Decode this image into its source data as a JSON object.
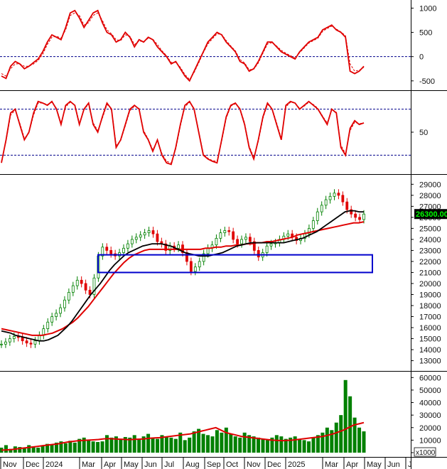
{
  "chart_data": [
    {
      "type": "line",
      "panel": "oscillator-1",
      "y_ticks": [
        1000,
        500,
        0,
        -500
      ],
      "ylim": [
        -620,
        1050
      ],
      "reference_lines": [
        0
      ],
      "series": [
        {
          "color": "#e00000",
          "style": "solid",
          "values": [
            -400,
            -450,
            -200,
            -100,
            -150,
            -250,
            -200,
            -120,
            -50,
            100,
            300,
            450,
            400,
            350,
            600,
            900,
            950,
            800,
            600,
            750,
            900,
            950,
            700,
            500,
            450,
            300,
            350,
            500,
            400,
            200,
            350,
            300,
            400,
            350,
            200,
            100,
            0,
            -150,
            -100,
            -250,
            -400,
            -500,
            -300,
            -100,
            100,
            300,
            400,
            500,
            450,
            300,
            200,
            100,
            -100,
            -150,
            -300,
            -250,
            -100,
            100,
            300,
            300,
            200,
            100,
            50,
            0,
            -50,
            100,
            200,
            300,
            350,
            400,
            550,
            600,
            650,
            550,
            500,
            400,
            -300,
            -350,
            -300,
            -200
          ]
        },
        {
          "color": "#e00000",
          "style": "dashed",
          "values": [
            -350,
            -400,
            -250,
            -150,
            -150,
            -200,
            -200,
            -150,
            -80,
            50,
            250,
            400,
            420,
            380,
            550,
            850,
            900,
            850,
            650,
            700,
            850,
            900,
            750,
            550,
            470,
            350,
            330,
            450,
            420,
            250,
            320,
            310,
            380,
            360,
            250,
            120,
            20,
            -120,
            -120,
            -220,
            -370,
            -470,
            -330,
            -130,
            80,
            260,
            370,
            470,
            460,
            330,
            220,
            120,
            -60,
            -130,
            -270,
            -260,
            -130,
            70,
            260,
            290,
            220,
            130,
            70,
            20,
            -30,
            80,
            180,
            280,
            330,
            380,
            520,
            580,
            630,
            570,
            510,
            430,
            -150,
            -300,
            -280,
            -220
          ]
        }
      ]
    },
    {
      "type": "line",
      "panel": "oscillator-2",
      "y_ticks": [
        50
      ],
      "ylim": [
        0,
        100
      ],
      "reference_lines": [
        80,
        20
      ],
      "series": [
        {
          "color": "#e00000",
          "style": "solid",
          "values": [
            10,
            40,
            75,
            80,
            60,
            40,
            50,
            75,
            90,
            88,
            85,
            90,
            80,
            60,
            85,
            90,
            85,
            60,
            80,
            88,
            60,
            50,
            70,
            88,
            80,
            30,
            40,
            60,
            80,
            85,
            80,
            50,
            40,
            25,
            40,
            20,
            10,
            8,
            30,
            60,
            85,
            90,
            80,
            50,
            20,
            15,
            12,
            10,
            40,
            70,
            85,
            88,
            80,
            60,
            30,
            15,
            40,
            70,
            88,
            80,
            60,
            40,
            85,
            90,
            88,
            80,
            85,
            90,
            85,
            80,
            70,
            60,
            80,
            75,
            30,
            20,
            55,
            65,
            60,
            62
          ]
        },
        {
          "color": "#e00000",
          "style": "dashed",
          "values": [
            12,
            38,
            72,
            79,
            62,
            42,
            49,
            72,
            88,
            88,
            86,
            89,
            81,
            62,
            83,
            89,
            86,
            62,
            79,
            87,
            62,
            52,
            68,
            86,
            81,
            33,
            39,
            58,
            78,
            84,
            81,
            52,
            41,
            27,
            39,
            22,
            12,
            10,
            28,
            58,
            83,
            89,
            81,
            52,
            22,
            16,
            13,
            12,
            38,
            68,
            84,
            87,
            81,
            62,
            32,
            17,
            38,
            68,
            86,
            81,
            62,
            42,
            83,
            89,
            88,
            81,
            84,
            89,
            86,
            81,
            71,
            62,
            79,
            76,
            33,
            22,
            52,
            63,
            61,
            62
          ]
        }
      ]
    },
    {
      "type": "candlestick",
      "panel": "price",
      "y_ticks": [
        29000,
        28000,
        27000,
        26000,
        25000,
        24000,
        23000,
        22000,
        21000,
        20000,
        19000,
        18000,
        17000,
        16000,
        15000,
        14000,
        13000
      ],
      "ylim": [
        12200,
        29600
      ],
      "last_price_label": "26300.00",
      "closes": [
        14500,
        14700,
        15000,
        15200,
        15100,
        14800,
        14600,
        14500,
        14800,
        15300,
        15900,
        16500,
        17000,
        17300,
        17800,
        18500,
        19200,
        19800,
        20300,
        20000,
        19400,
        19000,
        20500,
        22500,
        23300,
        23000,
        22700,
        22500,
        22800,
        23200,
        23600,
        24000,
        24200,
        24400,
        24600,
        24800,
        24500,
        23800,
        23600,
        23000,
        23400,
        23200,
        23500,
        22800,
        22000,
        21100,
        21500,
        22000,
        22700,
        23200,
        23500,
        24100,
        24600,
        24800,
        24700,
        24000,
        23600,
        24000,
        24200,
        23800,
        23000,
        22400,
        22800,
        23400,
        23600,
        23700,
        24000,
        24300,
        24500,
        24200,
        23900,
        24100,
        24500,
        25000,
        25700,
        26500,
        27100,
        27600,
        27900,
        28200,
        28000,
        27400,
        26700,
        26300,
        26000,
        25800,
        26300
      ],
      "ma_black": [
        15700,
        15600,
        15500,
        15300,
        15200,
        15100,
        15000,
        14900,
        14800,
        14800,
        14900,
        15100,
        15300,
        15700,
        16100,
        16600,
        17200,
        17800,
        18400,
        19000,
        19500,
        20000,
        20600,
        21200,
        21700,
        22100,
        22500,
        22800,
        23000,
        23200,
        23400,
        23500,
        23600,
        23600,
        23600,
        23500,
        23400,
        23200,
        23000,
        22800,
        22700,
        22600,
        22500,
        22500,
        22500,
        22600,
        22700,
        22800,
        23000,
        23200,
        23400,
        23500,
        23600,
        23700,
        23700,
        23700,
        23700,
        23700,
        23700,
        23700,
        23700,
        23800,
        23900,
        24000,
        24100,
        24300,
        24500,
        24700,
        25000,
        25300,
        25600,
        25900,
        26200,
        26500,
        26600,
        26600,
        26500,
        26500
      ],
      "ma_red": [
        15900,
        15800,
        15700,
        15600,
        15500,
        15400,
        15300,
        15300,
        15300,
        15400,
        15500,
        15700,
        15900,
        16200,
        16500,
        16900,
        17400,
        17900,
        18500,
        19100,
        19700,
        20300,
        20900,
        21400,
        21900,
        22300,
        22600,
        22800,
        23000,
        23100,
        23100,
        23100,
        23100,
        23100,
        23100,
        23100,
        23100,
        23100,
        23100,
        23100,
        23200,
        23200,
        23300,
        23300,
        23400,
        23400,
        23500,
        23500,
        23600,
        23600,
        23700,
        23700,
        23800,
        23800,
        23900,
        24000,
        24100,
        24200,
        24400,
        24500,
        24600,
        24700,
        24800,
        24900,
        25000,
        25100,
        25200,
        25300,
        25400,
        25500,
        25500,
        25600
      ],
      "annotation_box": {
        "y_range": [
          21000,
          22600
        ],
        "color": "#0000cc"
      }
    },
    {
      "type": "bar",
      "panel": "volume",
      "y_ticks": [
        60000,
        50000,
        40000,
        30000,
        20000,
        10000,
        0
      ],
      "ylim": [
        0,
        63000
      ],
      "unit_label": "x1000",
      "ma_color": "#e00000",
      "bar_color": "#008000",
      "values": [
        4000,
        6000,
        3000,
        5000,
        4500,
        3500,
        6000,
        5000,
        4000,
        5500,
        7000,
        6500,
        8000,
        9000,
        7500,
        9500,
        8000,
        11000,
        12000,
        10000,
        9000,
        8500,
        9000,
        14000,
        12000,
        13000,
        11000,
        12500,
        12000,
        14000,
        11000,
        13000,
        15000,
        12000,
        11000,
        14000,
        13000,
        12000,
        11000,
        16000,
        10000,
        12000,
        17000,
        19000,
        15000,
        14000,
        13000,
        18000,
        16000,
        20000,
        15000,
        13000,
        12000,
        16000,
        14000,
        13000,
        12000,
        11000,
        10000,
        12000,
        14000,
        13000,
        11000,
        12000,
        13000,
        11000,
        10000,
        9000,
        12000,
        14000,
        16000,
        20000,
        18000,
        24000,
        30000,
        58000,
        45000,
        28000,
        20000,
        17000
      ],
      "ma_values": [
        2000,
        2200,
        2500,
        3000,
        3500,
        4000,
        4500,
        5000,
        5500,
        6000,
        6500,
        7000,
        7800,
        8500,
        9000,
        9500,
        9800,
        10000,
        10200,
        10500,
        11000,
        11200,
        11000,
        10800,
        10600,
        10400,
        10600,
        10800,
        11000,
        11500,
        11800,
        12000,
        12500,
        13000,
        13500,
        14000,
        14500,
        15000,
        16000,
        17000,
        18000,
        19000,
        20000,
        18000,
        16000,
        15000,
        14000,
        13000,
        12500,
        12000,
        11500,
        11000,
        10500,
        10000,
        9800,
        9600,
        9800,
        10000,
        10500,
        11000,
        11500,
        12000,
        12500,
        13000,
        14000,
        15000,
        16500,
        18000,
        20000,
        22000,
        23000,
        24000
      ]
    }
  ],
  "x_axis": {
    "months": [
      "Nov",
      "Dec",
      "2024",
      "Mar",
      "Apr",
      "May",
      "Jun",
      "Jul",
      "Aug",
      "Sep",
      "Oct",
      "Nov",
      "Dec",
      "2025",
      "Mar",
      "Apr",
      "May",
      "Jun",
      "J"
    ]
  }
}
